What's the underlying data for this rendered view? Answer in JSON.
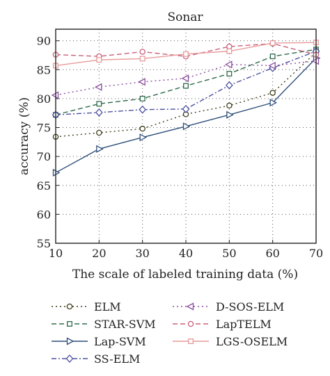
{
  "chart_data": {
    "type": "line",
    "title": "Sonar",
    "xlabel": "The scale of labeled training data (%)",
    "ylabel": "accuracy (%)",
    "x": [
      10,
      20,
      30,
      40,
      50,
      60,
      70
    ],
    "xlim": [
      10,
      70
    ],
    "ylim": [
      55,
      92
    ],
    "xticks": [
      "10",
      "20",
      "30",
      "40",
      "50",
      "60",
      "70"
    ],
    "yticks": [
      "55",
      "60",
      "65",
      "70",
      "75",
      "80",
      "85",
      "90"
    ],
    "grid": true,
    "legend_position": "bottom",
    "series": [
      {
        "name": "ELM",
        "values": [
          73.4,
          74.1,
          74.8,
          77.3,
          78.8,
          81.0,
          88.0
        ],
        "color": "#3d3d1a",
        "dash": "2,4",
        "marker": "circle"
      },
      {
        "name": "STAR-SVM",
        "values": [
          77.2,
          79.1,
          80.0,
          82.2,
          84.3,
          87.3,
          88.5
        ],
        "color": "#2e6b4a",
        "dash": "7,4",
        "marker": "square"
      },
      {
        "name": "Lap-SVM",
        "values": [
          67.2,
          71.3,
          73.3,
          75.2,
          77.2,
          79.3,
          87.0
        ],
        "color": "#2f4f7a",
        "dash": "",
        "marker": "triangle-right"
      },
      {
        "name": "SS-ELM",
        "values": [
          77.2,
          77.6,
          78.1,
          78.2,
          82.3,
          85.3,
          88.2
        ],
        "color": "#4a4f9e",
        "dash": "7,3,2,3",
        "marker": "diamond"
      },
      {
        "name": "D-SOS-ELM",
        "values": [
          80.6,
          82.0,
          82.9,
          83.5,
          85.9,
          85.7,
          86.5
        ],
        "color": "#8a4fa0",
        "dash": "2,4",
        "marker": "triangle-left"
      },
      {
        "name": "LapTELM",
        "values": [
          87.6,
          87.3,
          88.1,
          87.3,
          89.0,
          89.5,
          87.6
        ],
        "color": "#c8607a",
        "dash": "7,4",
        "marker": "circle"
      },
      {
        "name": "LGS-OSELM",
        "values": [
          85.7,
          86.7,
          86.9,
          87.7,
          88.2,
          89.6,
          89.7
        ],
        "color": "#e89a9a",
        "dash": "",
        "marker": "square"
      }
    ]
  }
}
